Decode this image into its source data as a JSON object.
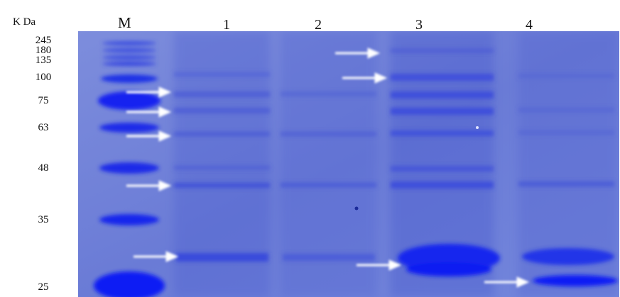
{
  "header": {
    "unit_label": "K Da",
    "marker_label": "M"
  },
  "lanes": [
    "1",
    "2",
    "3",
    "4"
  ],
  "markers": [
    "245",
    "180",
    "135",
    "100",
    "75",
    "63",
    "48",
    "35",
    "25"
  ],
  "colors": {
    "gel_background": "#6f7fd6",
    "band": "#1d2fe8",
    "arrow": "#ffffff"
  }
}
